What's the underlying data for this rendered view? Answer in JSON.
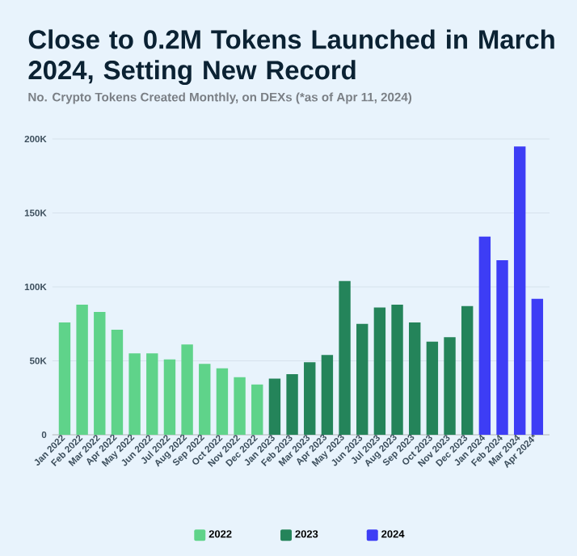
{
  "chart_data": {
    "type": "bar",
    "title": "Close to 0.2M Tokens Launched in March 2024, Setting New Record",
    "subtitle": "No. Crypto Tokens Created Monthly, on DEXs (*as of Apr 11, 2024)",
    "categories": [
      "Jan 2022",
      "Feb 2022",
      "Mar 2022",
      "Apr 2022",
      "May 2022",
      "Jun 2022",
      "Jul 2022",
      "Aug 2022",
      "Sep 2022",
      "Oct 2022",
      "Nov 2022",
      "Dec 2022",
      "Jan 2023",
      "Feb 2023",
      "Mar 2023",
      "Apr 2023",
      "May 2023",
      "Jun 2023",
      "Jul 2023",
      "Aug 2023",
      "Sep 2023",
      "Oct 2023",
      "Nov 2023",
      "Dec 2023",
      "Jan 2024",
      "Feb 2024",
      "Mar 2024",
      "Apr 2024*"
    ],
    "series": [
      {
        "name": "2022",
        "color": "#5fd38a",
        "values": [
          76000,
          88000,
          83000,
          71000,
          55000,
          55000,
          51000,
          61000,
          48000,
          45000,
          39000,
          34000,
          null,
          null,
          null,
          null,
          null,
          null,
          null,
          null,
          null,
          null,
          null,
          null,
          null,
          null,
          null,
          null
        ]
      },
      {
        "name": "2023",
        "color": "#24845a",
        "values": [
          null,
          null,
          null,
          null,
          null,
          null,
          null,
          null,
          null,
          null,
          null,
          null,
          38000,
          41000,
          49000,
          54000,
          104000,
          75000,
          86000,
          88000,
          76000,
          63000,
          66000,
          87000,
          null,
          null,
          null,
          null
        ]
      },
      {
        "name": "2024",
        "color": "#3d3df5",
        "values": [
          null,
          null,
          null,
          null,
          null,
          null,
          null,
          null,
          null,
          null,
          null,
          null,
          null,
          null,
          null,
          null,
          null,
          null,
          null,
          null,
          null,
          null,
          null,
          null,
          134000,
          118000,
          195000,
          92000
        ]
      }
    ],
    "ylim": [
      0,
      200000
    ],
    "yticks": [
      0,
      {
        "value": 50000,
        "label": "50K"
      },
      {
        "value": 100000,
        "label": "100K"
      },
      {
        "value": 150000,
        "label": "150K"
      },
      {
        "value": 200000,
        "label": "200K"
      }
    ],
    "grid": "y",
    "legend": "bottom"
  }
}
